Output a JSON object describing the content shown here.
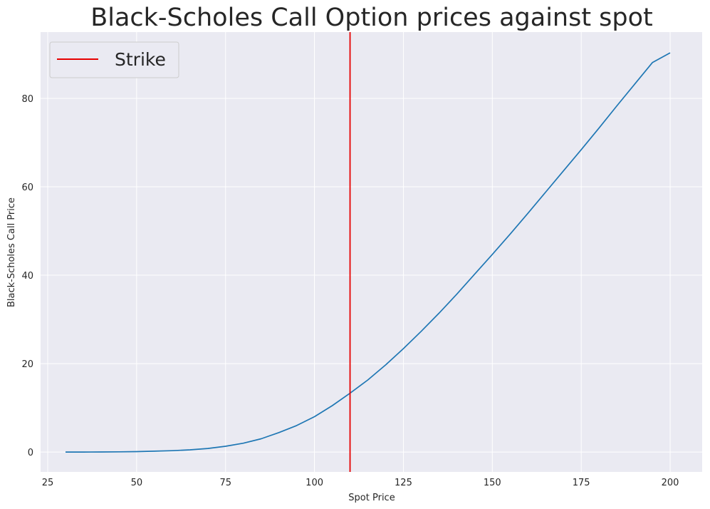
{
  "chart_data": {
    "type": "line",
    "title": "Black-Scholes Call Option prices against spot",
    "xlabel": "Spot Price",
    "ylabel": "Black-Scholes Call Price",
    "xlim": [
      23,
      209
    ],
    "ylim": [
      -4.5,
      95
    ],
    "xticks": [
      25,
      50,
      75,
      100,
      125,
      150,
      175,
      200
    ],
    "yticks": [
      0,
      20,
      40,
      60,
      80
    ],
    "grid": true,
    "legend_position": "top-left",
    "background_color": "#eaeaf2",
    "series": [
      {
        "name": "",
        "color": "#1f77b4",
        "x": [
          30,
          35,
          40,
          45,
          50,
          55,
          60,
          65,
          70,
          75,
          80,
          85,
          90,
          95,
          100,
          105,
          110,
          115,
          120,
          125,
          130,
          135,
          140,
          145,
          150,
          155,
          160,
          165,
          170,
          175,
          180,
          185,
          190,
          195,
          200
        ],
        "y": [
          0.0,
          0.0,
          0.02,
          0.05,
          0.1,
          0.2,
          0.3,
          0.5,
          0.8,
          1.3,
          2.0,
          3.0,
          4.4,
          6.0,
          8.0,
          10.5,
          13.3,
          16.3,
          19.7,
          23.4,
          27.3,
          31.4,
          35.7,
          40.2,
          44.7,
          49.3,
          54.0,
          58.8,
          63.6,
          68.4,
          73.3,
          78.3,
          83.2,
          88.1,
          90.3
        ]
      }
    ],
    "vlines": [
      {
        "name": "Strike",
        "x": 110,
        "color": "#e60000"
      }
    ],
    "legend": [
      {
        "label": "Strike",
        "color": "#e60000"
      }
    ]
  }
}
